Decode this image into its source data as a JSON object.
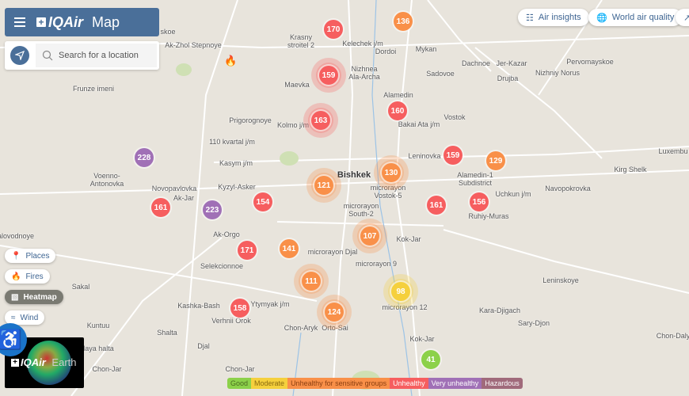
{
  "header": {
    "menu_icon": "hamburger-icon",
    "logo_brand": "IQAir",
    "logo_product": "Map"
  },
  "search": {
    "placeholder": "Search for a location",
    "locate_icon": "navigation-arrow-icon",
    "search_icon": "magnifier-icon"
  },
  "top_buttons": [
    {
      "label": "Air insights",
      "icon": "report-icon"
    },
    {
      "label": "World air quality",
      "icon": "globe-icon"
    },
    {
      "label": "",
      "icon": "trend-arrow-icon"
    }
  ],
  "layers": [
    {
      "label": "Places",
      "icon": "pin-icon",
      "active": false
    },
    {
      "label": "Fires",
      "icon": "flame-icon",
      "active": false
    },
    {
      "label": "Heatmap",
      "icon": "heatmap-icon",
      "active": true
    },
    {
      "label": "Wind",
      "icon": "wind-icon",
      "active": false
    }
  ],
  "earth": {
    "brand": "IQAir",
    "product": "Earth"
  },
  "legend": [
    {
      "label": "Good",
      "color": "#8cd14a",
      "text": "#4a6a20"
    },
    {
      "label": "Moderate",
      "color": "#f5d03d",
      "text": "#8a6a10"
    },
    {
      "label": "Unhealthy for sensitive groups",
      "color": "#f99049",
      "text": "#8a3e10"
    },
    {
      "label": "Unhealthy",
      "color": "#f65e5f",
      "text": "#ffffff"
    },
    {
      "label": "Very unhealthy",
      "color": "#a070b6",
      "text": "#ffffff"
    },
    {
      "label": "Hazardous",
      "color": "#a06a7b",
      "text": "#ffffff"
    }
  ],
  "places": [
    "Krasny stroitel 2",
    "Kelechek j/m",
    "Dordoi",
    "Mykan",
    "Dachnoe",
    "Jer-Kazar",
    "Drujba",
    "Pervomayskoe",
    "Nizhniy Norus",
    "Ak-Zhol Stepnoye",
    "Nizhnea Ala-Archa",
    "Maevka",
    "Sadovoe",
    "Frunze imeni",
    "Prigorognoye",
    "Kolmo j/m",
    "Alamedin",
    "Bakai Ata j/m",
    "Vostok",
    "110 kvartal j/m",
    "Kasym j/m",
    "Leninovka",
    "Alamedin-1 Subdistrict",
    "Luxembu",
    "Kirg Shelk",
    "Voenno-Antonovka",
    "Novopavlovka",
    "Kyzyl-Asker",
    "Bishkek",
    "microrayon Vostok-5",
    "Uchkun j/m",
    "Navopokrovka",
    "Ak-Jar",
    "microrayon South-2",
    "Ruhiy-Muras",
    "alovodnoye",
    "Ak-Orgo",
    "Kok-Jar",
    "Selekcionnoe",
    "microrayon Djal",
    "microrayon 9",
    "Leninskoye",
    "microrayon 12",
    "Kashka-Bash",
    "Ytymyak j/m",
    "Kara-Djigach",
    "Verhnii Orok",
    "Chon-Aryk",
    "Orto-Sai",
    "Sary-Djon",
    "Kuntuu",
    "Shalta",
    "Kok-Jar",
    "Chon-Daly",
    "Djal",
    "Sakal",
    "Chon-Jar",
    "Chon-Jar",
    "alaya halta",
    "skoe"
  ],
  "stations": [
    {
      "aqi": 170,
      "level": "Unhealthy",
      "cluster": false
    },
    {
      "aqi": 136,
      "level": "Unhealthy for sensitive groups",
      "cluster": false
    },
    {
      "aqi": 159,
      "level": "Unhealthy",
      "cluster": true
    },
    {
      "aqi": 163,
      "level": "Unhealthy",
      "cluster": true
    },
    {
      "aqi": 160,
      "level": "Unhealthy",
      "cluster": false
    },
    {
      "aqi": 228,
      "level": "Very unhealthy",
      "cluster": false
    },
    {
      "aqi": 159,
      "level": "Unhealthy",
      "cluster": false
    },
    {
      "aqi": 129,
      "level": "Unhealthy for sensitive groups",
      "cluster": false
    },
    {
      "aqi": 130,
      "level": "Unhealthy for sensitive groups",
      "cluster": true
    },
    {
      "aqi": 121,
      "level": "Unhealthy for sensitive groups",
      "cluster": true
    },
    {
      "aqi": 161,
      "level": "Unhealthy",
      "cluster": false
    },
    {
      "aqi": 223,
      "level": "Very unhealthy",
      "cluster": false
    },
    {
      "aqi": 154,
      "level": "Unhealthy",
      "cluster": false
    },
    {
      "aqi": 161,
      "level": "Unhealthy",
      "cluster": false
    },
    {
      "aqi": 156,
      "level": "Unhealthy",
      "cluster": false
    },
    {
      "aqi": 107,
      "level": "Unhealthy for sensitive groups",
      "cluster": true
    },
    {
      "aqi": 171,
      "level": "Unhealthy",
      "cluster": false
    },
    {
      "aqi": 141,
      "level": "Unhealthy for sensitive groups",
      "cluster": false
    },
    {
      "aqi": 111,
      "level": "Unhealthy for sensitive groups",
      "cluster": true
    },
    {
      "aqi": 98,
      "level": "Moderate",
      "cluster": true
    },
    {
      "aqi": 158,
      "level": "Unhealthy",
      "cluster": false
    },
    {
      "aqi": 124,
      "level": "Unhealthy for sensitive groups",
      "cluster": true
    },
    {
      "aqi": 41,
      "level": "Good",
      "cluster": false
    }
  ],
  "fire_icon": "flame-icon"
}
